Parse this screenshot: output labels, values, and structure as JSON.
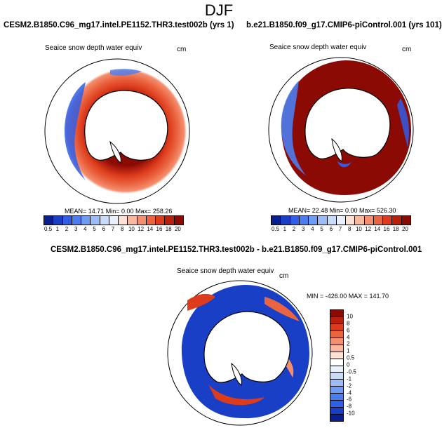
{
  "main_title": "DJF",
  "panels": [
    {
      "title": "CESM2.B1850.C96_mg17.intel.PE1152.THR3.test002b (yrs 1)",
      "variable": "Seaice snow depth water equiv",
      "units": "cm",
      "stats": "MEAN=  14.71  Min=   0.00  Max= 258.26",
      "colorbar_labels": [
        "0.5",
        "1",
        "2",
        "3",
        "4",
        "5",
        "6",
        "7",
        "8",
        "10",
        "12",
        "14",
        "16",
        "18",
        "20"
      ]
    },
    {
      "title": "b.e21.B1850.f09_g17.CMIP6-piControl.001 (yrs 101)",
      "variable": "Seaice snow depth water equiv",
      "units": "cm",
      "stats": "MEAN=  22.48  Min=   0.00  Max= 526.30",
      "colorbar_labels": [
        "0.5",
        "1",
        "2",
        "3",
        "4",
        "5",
        "6",
        "7",
        "8",
        "10",
        "12",
        "14",
        "16",
        "18",
        "20"
      ]
    },
    {
      "title": "CESM2.B1850.C96_mg17.intel.PE1152.THR3.test002b - b.e21.B1850.f09_g17.CMIP6-piControl.001",
      "variable": "Seaice snow depth water equiv",
      "units": "cm",
      "stats": "MIN = -426.00 MAX = 141.70",
      "colorbar_labels": [
        "10",
        "8",
        "6",
        "4",
        "2",
        "1",
        "0.5",
        "0",
        "-0.5",
        "-1",
        "-2",
        "-4",
        "-6",
        "-8",
        "-10"
      ]
    }
  ],
  "colors": {
    "seq": [
      "#0a1f8f",
      "#1a3fc7",
      "#2f5ee8",
      "#4a7df0",
      "#6e9cf5",
      "#9bbcf7",
      "#c8dbf8",
      "#e9f0fb",
      "#fde1d2",
      "#f8b8a0",
      "#f38f6f",
      "#eb6440",
      "#dc3b1c",
      "#b8200b",
      "#8c0a04"
    ],
    "diff": [
      "#8c0a04",
      "#b8200b",
      "#dc3b1c",
      "#eb6440",
      "#f38f6f",
      "#f8b8a0",
      "#fde1d2",
      "#ffffff",
      "#e9f0fb",
      "#c8dbf8",
      "#9bbcf7",
      "#6e9cf5",
      "#4a7df0",
      "#2f5ee8",
      "#1a3fc7",
      "#0a1f8f"
    ],
    "continent": "#ffffff",
    "coast": "#000000"
  }
}
